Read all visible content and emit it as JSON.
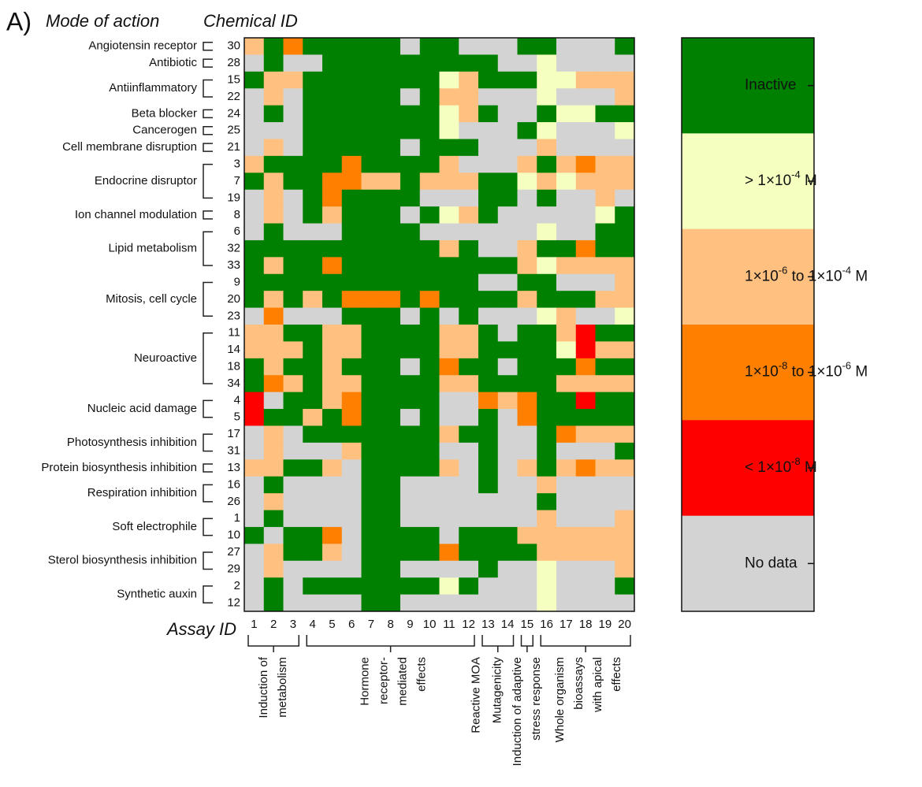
{
  "panel": "A)",
  "row_header": "Mode of action",
  "id_header": "Chemical ID",
  "x_label": "Assay ID",
  "assay_ids": [
    1,
    2,
    3,
    4,
    5,
    6,
    7,
    8,
    9,
    10,
    11,
    12,
    13,
    14,
    15,
    16,
    17,
    18,
    19,
    20
  ],
  "assay_groups": [
    {
      "lines": [
        "Induction of",
        "metabolism"
      ],
      "span": [
        1,
        3
      ],
      "bracket": true
    },
    {
      "lines": [
        "Hormone",
        "receptor-",
        "mediated",
        "effects"
      ],
      "span": [
        4,
        12
      ],
      "bracket": true
    },
    {
      "lines": [
        "Reactive MOA"
      ],
      "span": [
        12,
        12
      ],
      "bracket": false
    },
    {
      "lines": [
        "Mutagenicity"
      ],
      "span": [
        13,
        14
      ],
      "bracket": true
    },
    {
      "lines": [
        "Induction of adaptive",
        "stress response"
      ],
      "span": [
        15,
        15
      ],
      "bracket": true
    },
    {
      "lines": [
        "Whole organism",
        "bioassays",
        "with apical",
        "effects"
      ],
      "span": [
        16,
        20
      ],
      "bracket": true
    }
  ],
  "legend": [
    {
      "color": "#008000",
      "parts": [
        {
          "t": "Inactive"
        }
      ]
    },
    {
      "color": "#f5ffc0",
      "parts": [
        {
          "t": "> 1×10"
        },
        {
          "sup": "-4"
        },
        {
          "t": " M"
        }
      ]
    },
    {
      "color": "#ffc080",
      "parts": [
        {
          "t": "1×10"
        },
        {
          "sup": "-6"
        },
        {
          "t": " to 1×10"
        },
        {
          "sup": "-4"
        },
        {
          "t": " M"
        }
      ]
    },
    {
      "color": "#ff8000",
      "parts": [
        {
          "t": "1×10"
        },
        {
          "sup": "-8"
        },
        {
          "t": " to 1×10"
        },
        {
          "sup": "-6"
        },
        {
          "t": " M"
        }
      ]
    },
    {
      "color": "#ff0000",
      "parts": [
        {
          "t": "< 1×10"
        },
        {
          "sup": "-8"
        },
        {
          "t": " M"
        }
      ]
    },
    {
      "color": "#d3d3d3",
      "parts": [
        {
          "t": "No data"
        }
      ]
    }
  ],
  "groups": [
    {
      "name": "Angiotensin receptor",
      "rows": [
        {
          "id": 30,
          "values": [
            2,
            0,
            3,
            0,
            0,
            0,
            0,
            0,
            5,
            0,
            0,
            5,
            5,
            5,
            0,
            0,
            5,
            5,
            5,
            0
          ]
        }
      ]
    },
    {
      "name": "Antibiotic",
      "rows": [
        {
          "id": 28,
          "values": [
            5,
            0,
            5,
            5,
            0,
            0,
            0,
            0,
            0,
            0,
            0,
            0,
            0,
            5,
            5,
            1,
            5,
            5,
            5,
            5
          ]
        }
      ]
    },
    {
      "name": "Antiinflammatory",
      "rows": [
        {
          "id": 15,
          "values": [
            0,
            2,
            2,
            0,
            0,
            0,
            0,
            0,
            0,
            0,
            1,
            2,
            0,
            0,
            0,
            1,
            1,
            2,
            2,
            2
          ]
        },
        {
          "id": 22,
          "values": [
            5,
            2,
            5,
            0,
            0,
            0,
            0,
            0,
            5,
            0,
            2,
            2,
            5,
            5,
            5,
            1,
            5,
            5,
            5,
            2
          ]
        }
      ]
    },
    {
      "name": "Beta blocker",
      "rows": [
        {
          "id": 24,
          "values": [
            5,
            0,
            5,
            0,
            0,
            0,
            0,
            0,
            0,
            0,
            1,
            2,
            0,
            5,
            5,
            0,
            1,
            1,
            0,
            0
          ]
        }
      ]
    },
    {
      "name": "Cancerogen",
      "rows": [
        {
          "id": 25,
          "values": [
            5,
            5,
            5,
            0,
            0,
            0,
            0,
            0,
            0,
            0,
            1,
            5,
            5,
            5,
            0,
            1,
            5,
            5,
            5,
            1
          ]
        }
      ]
    },
    {
      "name": "Cell membrane disruption",
      "rows": [
        {
          "id": 21,
          "values": [
            5,
            2,
            5,
            0,
            0,
            0,
            0,
            0,
            5,
            0,
            0,
            0,
            5,
            5,
            5,
            2,
            5,
            5,
            5,
            5
          ]
        }
      ]
    },
    {
      "name": "Endocrine disruptor",
      "rows": [
        {
          "id": 3,
          "values": [
            2,
            0,
            0,
            0,
            0,
            3,
            0,
            0,
            0,
            0,
            2,
            5,
            5,
            5,
            2,
            0,
            2,
            3,
            2,
            2
          ]
        },
        {
          "id": 7,
          "values": [
            0,
            2,
            0,
            0,
            3,
            3,
            2,
            2,
            0,
            2,
            2,
            2,
            0,
            0,
            1,
            2,
            1,
            2,
            2,
            2
          ]
        },
        {
          "id": 19,
          "values": [
            5,
            2,
            5,
            0,
            3,
            0,
            0,
            0,
            0,
            5,
            5,
            5,
            0,
            0,
            5,
            0,
            5,
            5,
            2,
            5
          ]
        }
      ]
    },
    {
      "name": "Ion channel modulation",
      "rows": [
        {
          "id": 8,
          "values": [
            5,
            2,
            5,
            0,
            2,
            0,
            0,
            0,
            5,
            0,
            1,
            2,
            0,
            5,
            5,
            5,
            5,
            5,
            1,
            0
          ]
        }
      ]
    },
    {
      "name": "Lipid metabolism",
      "rows": [
        {
          "id": 6,
          "values": [
            5,
            0,
            5,
            5,
            5,
            0,
            0,
            0,
            0,
            5,
            5,
            5,
            5,
            5,
            5,
            1,
            5,
            5,
            0,
            0
          ]
        },
        {
          "id": 32,
          "values": [
            0,
            0,
            0,
            0,
            0,
            0,
            0,
            0,
            0,
            0,
            2,
            0,
            5,
            5,
            2,
            0,
            0,
            3,
            0,
            0
          ]
        },
        {
          "id": 33,
          "values": [
            0,
            2,
            0,
            0,
            3,
            0,
            0,
            0,
            0,
            0,
            0,
            0,
            0,
            0,
            2,
            1,
            2,
            2,
            2,
            2
          ]
        }
      ]
    },
    {
      "name": "Mitosis, cell cycle",
      "rows": [
        {
          "id": 9,
          "values": [
            0,
            0,
            0,
            0,
            0,
            0,
            0,
            0,
            0,
            0,
            0,
            0,
            5,
            5,
            0,
            0,
            5,
            5,
            5,
            2
          ]
        },
        {
          "id": 20,
          "values": [
            0,
            2,
            0,
            2,
            0,
            3,
            3,
            3,
            0,
            3,
            0,
            0,
            0,
            0,
            2,
            0,
            0,
            0,
            2,
            2
          ]
        },
        {
          "id": 23,
          "values": [
            5,
            3,
            5,
            5,
            5,
            0,
            0,
            0,
            5,
            0,
            5,
            0,
            5,
            5,
            5,
            1,
            2,
            5,
            5,
            1
          ]
        }
      ]
    },
    {
      "name": "Neuroactive",
      "rows": [
        {
          "id": 11,
          "values": [
            2,
            2,
            0,
            0,
            2,
            2,
            0,
            0,
            0,
            0,
            2,
            2,
            0,
            5,
            0,
            0,
            2,
            4,
            0,
            0
          ]
        },
        {
          "id": 14,
          "values": [
            2,
            2,
            2,
            0,
            2,
            2,
            0,
            0,
            0,
            0,
            2,
            2,
            0,
            0,
            0,
            0,
            1,
            4,
            2,
            2
          ]
        },
        {
          "id": 18,
          "values": [
            0,
            2,
            0,
            0,
            2,
            0,
            0,
            0,
            5,
            0,
            3,
            0,
            0,
            5,
            0,
            0,
            0,
            3,
            0,
            0
          ]
        },
        {
          "id": 34,
          "values": [
            0,
            3,
            2,
            0,
            2,
            2,
            0,
            0,
            0,
            0,
            2,
            2,
            0,
            0,
            0,
            0,
            2,
            2,
            2,
            2
          ]
        }
      ]
    },
    {
      "name": "Nucleic acid damage",
      "rows": [
        {
          "id": 4,
          "values": [
            4,
            5,
            0,
            0,
            2,
            3,
            0,
            0,
            0,
            0,
            5,
            5,
            3,
            2,
            3,
            0,
            0,
            4,
            0,
            0
          ]
        },
        {
          "id": 5,
          "values": [
            4,
            0,
            0,
            2,
            0,
            3,
            0,
            0,
            5,
            0,
            5,
            5,
            0,
            5,
            3,
            0,
            0,
            0,
            0,
            0
          ]
        }
      ]
    },
    {
      "name": "Photosynthesis inhibition",
      "rows": [
        {
          "id": 17,
          "values": [
            5,
            2,
            5,
            0,
            0,
            0,
            0,
            0,
            0,
            0,
            2,
            0,
            0,
            5,
            5,
            0,
            3,
            2,
            2,
            2
          ]
        },
        {
          "id": 31,
          "values": [
            5,
            2,
            5,
            5,
            5,
            2,
            0,
            0,
            0,
            0,
            5,
            5,
            0,
            5,
            5,
            0,
            5,
            5,
            5,
            0
          ]
        }
      ]
    },
    {
      "name": "Protein biosynthesis inhibition",
      "rows": [
        {
          "id": 13,
          "values": [
            2,
            2,
            0,
            0,
            2,
            5,
            0,
            0,
            0,
            0,
            2,
            5,
            0,
            5,
            2,
            0,
            2,
            3,
            2,
            2
          ]
        }
      ]
    },
    {
      "name": "Respiration inhibition",
      "rows": [
        {
          "id": 16,
          "values": [
            5,
            0,
            5,
            5,
            5,
            5,
            0,
            0,
            5,
            5,
            5,
            5,
            0,
            5,
            5,
            2,
            5,
            5,
            5,
            5
          ]
        },
        {
          "id": 26,
          "values": [
            5,
            2,
            5,
            5,
            5,
            5,
            0,
            0,
            5,
            5,
            5,
            5,
            5,
            5,
            5,
            0,
            5,
            5,
            5,
            5
          ]
        }
      ]
    },
    {
      "name": "Soft electrophile",
      "rows": [
        {
          "id": 1,
          "values": [
            5,
            0,
            5,
            5,
            5,
            5,
            0,
            0,
            5,
            5,
            5,
            5,
            5,
            5,
            5,
            2,
            5,
            5,
            5,
            2
          ]
        },
        {
          "id": 10,
          "values": [
            0,
            5,
            0,
            0,
            3,
            5,
            0,
            0,
            0,
            0,
            5,
            0,
            0,
            0,
            2,
            2,
            2,
            2,
            2,
            2
          ]
        }
      ]
    },
    {
      "name": "Sterol biosynthesis inhibition",
      "rows": [
        {
          "id": 27,
          "values": [
            5,
            2,
            0,
            0,
            2,
            5,
            0,
            0,
            0,
            0,
            3,
            0,
            0,
            0,
            0,
            2,
            2,
            2,
            2,
            2
          ]
        },
        {
          "id": 29,
          "values": [
            5,
            2,
            5,
            5,
            5,
            5,
            0,
            0,
            5,
            5,
            5,
            5,
            0,
            5,
            5,
            1,
            5,
            5,
            5,
            2
          ]
        }
      ]
    },
    {
      "name": "Synthetic auxin",
      "rows": [
        {
          "id": 2,
          "values": [
            5,
            0,
            5,
            0,
            0,
            0,
            0,
            0,
            0,
            0,
            1,
            0,
            5,
            5,
            5,
            1,
            5,
            5,
            5,
            0
          ]
        },
        {
          "id": 12,
          "values": [
            5,
            0,
            5,
            5,
            5,
            5,
            0,
            0,
            5,
            5,
            5,
            5,
            5,
            5,
            5,
            1,
            5,
            5,
            5,
            5
          ]
        }
      ]
    }
  ]
}
